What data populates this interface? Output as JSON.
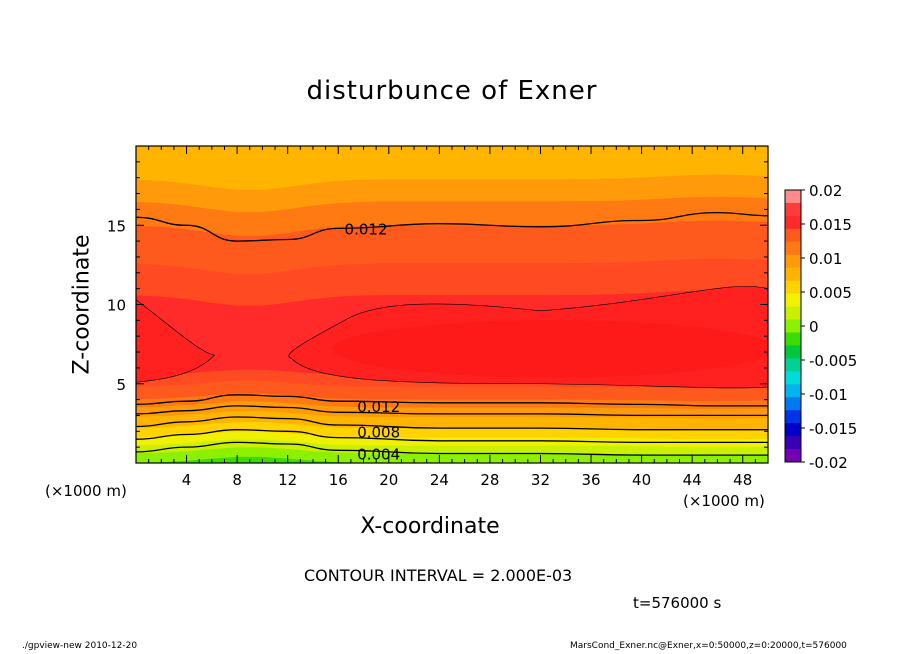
{
  "title": "disturbunce of Exner",
  "chart_data": {
    "type": "contour",
    "xlabel": "X-coordinate",
    "ylabel": "Z-coordinate",
    "x_unit": "(×1000 m)",
    "z_unit": "(×1000 m)",
    "xlim": [
      0,
      50
    ],
    "ylim": [
      0,
      20
    ],
    "xticks": [
      4,
      8,
      12,
      16,
      20,
      24,
      28,
      32,
      36,
      40,
      44,
      48
    ],
    "yticks": [
      5,
      10,
      15
    ],
    "contour_interval": "CONTOUR INTERVAL = 2.000E-03",
    "contour_labels": [
      {
        "text": "0.012",
        "x": 16.5,
        "z": 14.8
      },
      {
        "text": "0.012",
        "x": 17.5,
        "z": 3.6
      },
      {
        "text": "0.008",
        "x": 17.5,
        "z": 2.0
      },
      {
        "text": "0.004",
        "x": 17.5,
        "z": 0.6
      }
    ],
    "colorbar": {
      "labels": [
        "0.02",
        "0.015",
        "0.01",
        "0.005",
        "0",
        "-0.005",
        "-0.01",
        "-0.015",
        "-0.02"
      ],
      "colors": [
        "#ff8c8c",
        "#ff3c3c",
        "#ff2a2a",
        "#ff5a1e",
        "#ff7a12",
        "#ff9a0a",
        "#ffb400",
        "#ffd200",
        "#f0f000",
        "#c8f000",
        "#8cf000",
        "#3cdc00",
        "#00c83c",
        "#00d296",
        "#00dcdc",
        "#00b4f0",
        "#0078f0",
        "#0032e6",
        "#0000c8",
        "#3c00b4",
        "#7800b4"
      ],
      "range": [
        -0.02,
        0.02
      ]
    },
    "bands": [
      {
        "z": 19.4,
        "color": "#ffb400"
      },
      {
        "z": 17.9,
        "color": "#ff9a0a"
      },
      {
        "z": 16.5,
        "color": "#ff7a12"
      },
      {
        "z": 15.0,
        "color": "#ff5a1e"
      },
      {
        "z": 12.6,
        "color": "#ff4a22"
      },
      {
        "z": 10.6,
        "color": "#ff2a2a"
      },
      {
        "z": 5.5,
        "color": "#ff4a22"
      },
      {
        "z": 4.8,
        "color": "#ff5a1e"
      },
      {
        "z": 4.0,
        "color": "#ff7a12"
      },
      {
        "z": 3.5,
        "color": "#ff9a0a"
      },
      {
        "z": 2.9,
        "color": "#ffb400"
      },
      {
        "z": 2.2,
        "color": "#ffd200"
      },
      {
        "z": 1.6,
        "color": "#f0f000"
      },
      {
        "z": 1.1,
        "color": "#c8f000"
      },
      {
        "z": 0.6,
        "color": "#8cf000"
      },
      {
        "z": 0.0,
        "color": "#3cdc00"
      }
    ],
    "contours": [
      {
        "name": "contour-upper-0.012",
        "points": [
          [
            0,
            15.5
          ],
          [
            4,
            15.0
          ],
          [
            8,
            14.0
          ],
          [
            12,
            14.1
          ],
          [
            16,
            14.8
          ],
          [
            24,
            15.1
          ],
          [
            32,
            14.9
          ],
          [
            40,
            15.3
          ],
          [
            46,
            15.8
          ],
          [
            50,
            15.6
          ]
        ]
      },
      {
        "name": "contour-lower-0.012",
        "points": [
          [
            0,
            3.7
          ],
          [
            4,
            3.9
          ],
          [
            8,
            4.3
          ],
          [
            12,
            4.2
          ],
          [
            16,
            3.9
          ],
          [
            24,
            3.8
          ],
          [
            32,
            3.8
          ],
          [
            40,
            3.7
          ],
          [
            46,
            3.6
          ],
          [
            50,
            3.6
          ]
        ]
      },
      {
        "name": "contour-0.010",
        "points": [
          [
            0,
            3.1
          ],
          [
            4,
            3.3
          ],
          [
            8,
            3.6
          ],
          [
            12,
            3.5
          ],
          [
            16,
            3.2
          ],
          [
            24,
            3.1
          ],
          [
            32,
            3.1
          ],
          [
            40,
            3.0
          ],
          [
            50,
            3.0
          ]
        ]
      },
      {
        "name": "contour-0.008",
        "points": [
          [
            0,
            2.3
          ],
          [
            4,
            2.6
          ],
          [
            8,
            2.9
          ],
          [
            12,
            2.8
          ],
          [
            16,
            2.4
          ],
          [
            24,
            2.2
          ],
          [
            32,
            2.2
          ],
          [
            40,
            2.1
          ],
          [
            50,
            2.1
          ]
        ]
      },
      {
        "name": "contour-0.006",
        "points": [
          [
            0,
            1.5
          ],
          [
            4,
            1.8
          ],
          [
            8,
            2.1
          ],
          [
            12,
            2.0
          ],
          [
            16,
            1.6
          ],
          [
            24,
            1.4
          ],
          [
            32,
            1.4
          ],
          [
            40,
            1.3
          ],
          [
            50,
            1.3
          ]
        ]
      },
      {
        "name": "contour-0.004",
        "points": [
          [
            0,
            0.7
          ],
          [
            4,
            1.0
          ],
          [
            8,
            1.3
          ],
          [
            12,
            1.2
          ],
          [
            16,
            0.8
          ],
          [
            24,
            0.6
          ],
          [
            32,
            0.6
          ],
          [
            40,
            0.5
          ],
          [
            50,
            0.5
          ]
        ]
      }
    ]
  },
  "unit_left": "(×1000 m)",
  "unit_right": "(×1000 m)",
  "time_label": "t=576000 s",
  "footer_left": "./gpview-new   2010-12-20",
  "footer_right": "MarsCond_Exner.nc@Exner,x=0:50000,z=0:20000,t=576000"
}
